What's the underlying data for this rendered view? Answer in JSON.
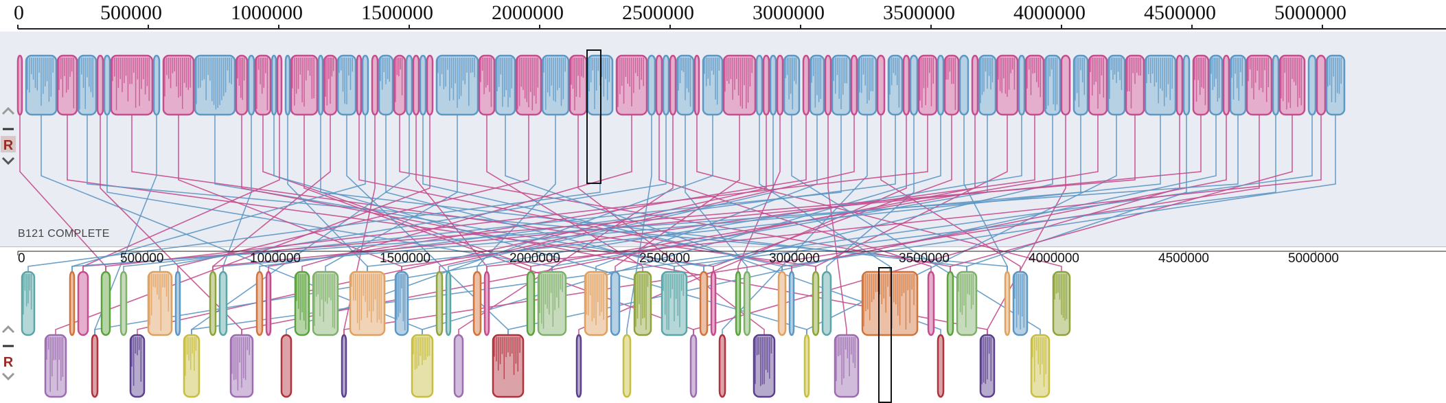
{
  "top_genome": {
    "label": "B121 COMPLETE",
    "ticks": [
      "0",
      "500000",
      "1000000",
      "1500000",
      "2000000",
      "2500000",
      "3000000",
      "3500000",
      "4000000",
      "4500000",
      "5000000"
    ]
  },
  "bottom_genome": {
    "ticks": [
      "0",
      "500000",
      "1000000",
      "1500000",
      "2000000",
      "2500000",
      "3000000",
      "3500000",
      "4000000",
      "4500000",
      "5000000"
    ]
  },
  "controls": {
    "collapse": "^",
    "minus": "−",
    "reverse": "R",
    "expand": "v"
  },
  "colors": {
    "panel_bg": "#e9ecf3",
    "purple": "#5a3f8e",
    "yellow": "#c7bd3e",
    "green": "#5aa23c",
    "teal": "#5aa6a6",
    "red": "#b0303c",
    "pink": "#c54c8d",
    "orange": "#d2743a",
    "lightblue": "#5d97c4",
    "olive": "#8ea33a"
  }
}
